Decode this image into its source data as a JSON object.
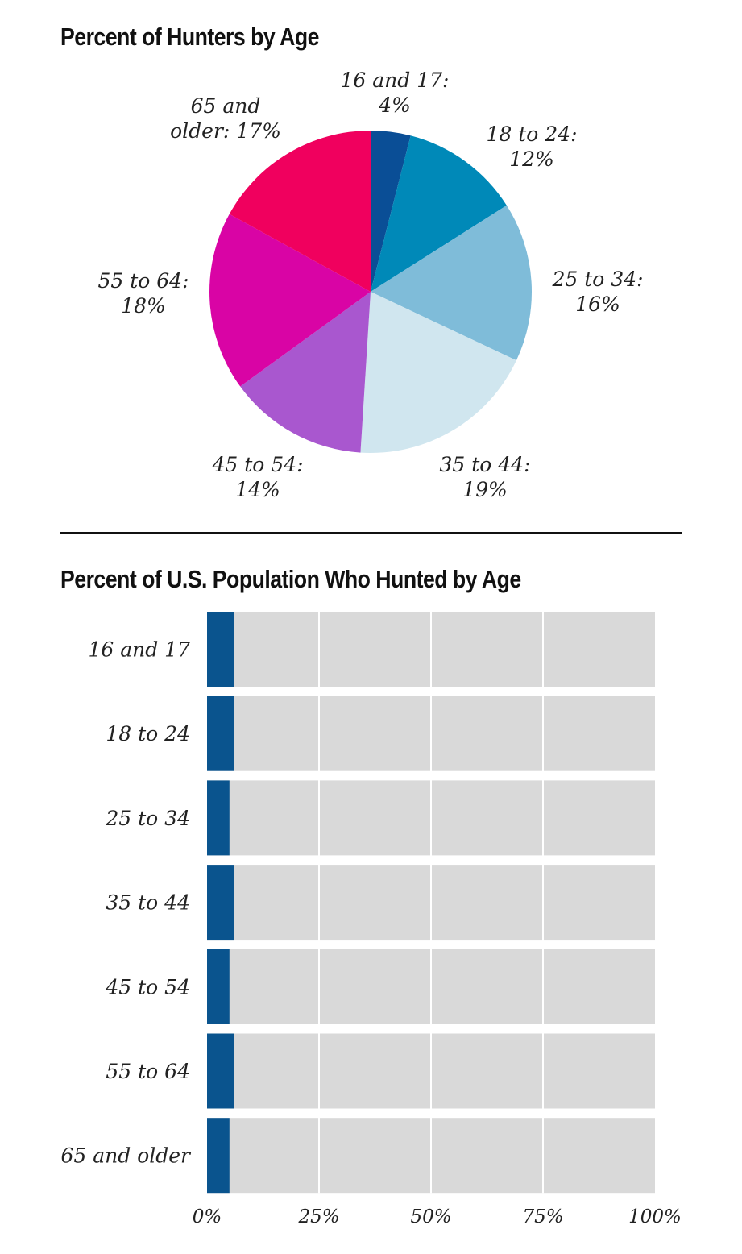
{
  "chart_data": [
    {
      "type": "pie",
      "title": "Percent of Hunters by Age",
      "slices": [
        {
          "label_line1": "16 and 17:",
          "label_line2": "4%",
          "value": 4,
          "color": "#0a4e96"
        },
        {
          "label_line1": "18 to 24:",
          "label_line2": "12%",
          "value": 12,
          "color": "#0089b8"
        },
        {
          "label_line1": "25 to 34:",
          "label_line2": "16%",
          "value": 16,
          "color": "#7fbcd9"
        },
        {
          "label_line1": "35 to 44:",
          "label_line2": "19%",
          "value": 19,
          "color": "#d0e6ef"
        },
        {
          "label_line1": "45 to 54:",
          "label_line2": "14%",
          "value": 14,
          "color": "#a957cf"
        },
        {
          "label_line1": "55 to 64:",
          "label_line2": "18%",
          "value": 18,
          "color": "#d904a5"
        },
        {
          "label_line1": "65 and",
          "label_line2": "older: 17%",
          "value": 17,
          "color": "#f0005e"
        }
      ]
    },
    {
      "type": "bar",
      "orientation": "horizontal",
      "title": "Percent of U.S. Population Who Hunted by Age",
      "categories": [
        "16 and 17",
        "18 to 24",
        "25 to 34",
        "35 to 44",
        "45 to 54",
        "55 to 64",
        "65 and older"
      ],
      "values": [
        6,
        6,
        5,
        6,
        5,
        6,
        5
      ],
      "xlim": [
        0,
        100
      ],
      "xticks": [
        0,
        25,
        50,
        75,
        100
      ],
      "xtick_labels": [
        "0%",
        "25%",
        "50%",
        "75%",
        "100%"
      ],
      "bar_color": "#0a548e",
      "track_color": "#d9d9d9",
      "grid": true
    }
  ]
}
